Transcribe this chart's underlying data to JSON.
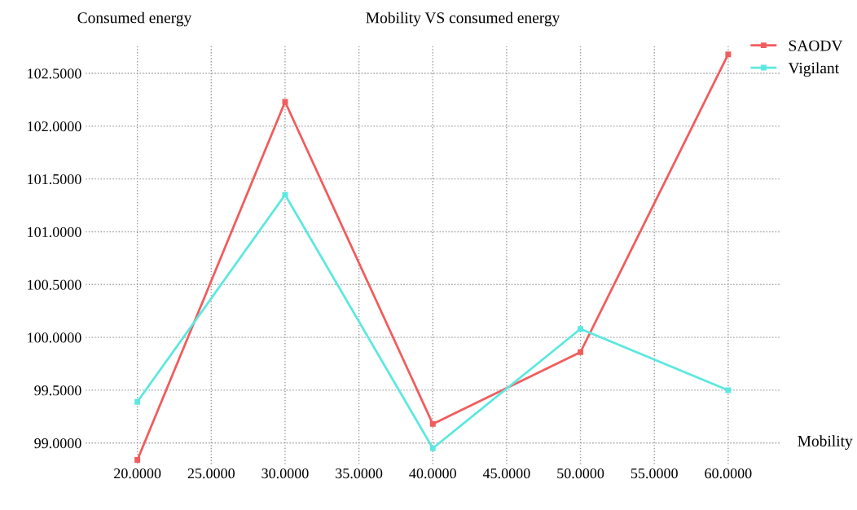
{
  "chart_data": {
    "type": "line",
    "title": "Mobility VS consumed energy",
    "xlabel": "Mobility",
    "ylabel": "Consumed energy",
    "x": [
      20,
      30,
      40,
      50,
      60
    ],
    "series": [
      {
        "name": "SAODV",
        "color": "#f25c5c",
        "values": [
          98.84,
          102.23,
          99.18,
          99.86,
          102.68
        ]
      },
      {
        "name": "Vigilant",
        "color": "#5ce8e0",
        "values": [
          99.39,
          101.35,
          98.95,
          100.08,
          99.5
        ]
      }
    ],
    "xlim": [
      16.5,
      63.5
    ],
    "ylim": [
      98.8,
      102.76
    ],
    "xticks": [
      {
        "value": 20,
        "label": "20.0000"
      },
      {
        "value": 25,
        "label": "25.0000"
      },
      {
        "value": 30,
        "label": "30.0000"
      },
      {
        "value": 35,
        "label": "35.0000"
      },
      {
        "value": 40,
        "label": "40.0000"
      },
      {
        "value": 45,
        "label": "45.0000"
      },
      {
        "value": 50,
        "label": "50.0000"
      },
      {
        "value": 55,
        "label": "55.0000"
      },
      {
        "value": 60,
        "label": "60.0000"
      }
    ],
    "yticks": [
      {
        "value": 99,
        "label": "99.0000"
      },
      {
        "value": 99.5,
        "label": "99.5000"
      },
      {
        "value": 100,
        "label": "100.0000"
      },
      {
        "value": 100.5,
        "label": "100.5000"
      },
      {
        "value": 101,
        "label": "101.0000"
      },
      {
        "value": 101.5,
        "label": "101.5000"
      },
      {
        "value": 102,
        "label": "102.0000"
      },
      {
        "value": 102.5,
        "label": "102.5000"
      }
    ],
    "grid": true,
    "legend": "top right",
    "marker": "square",
    "line_style": "solid"
  }
}
